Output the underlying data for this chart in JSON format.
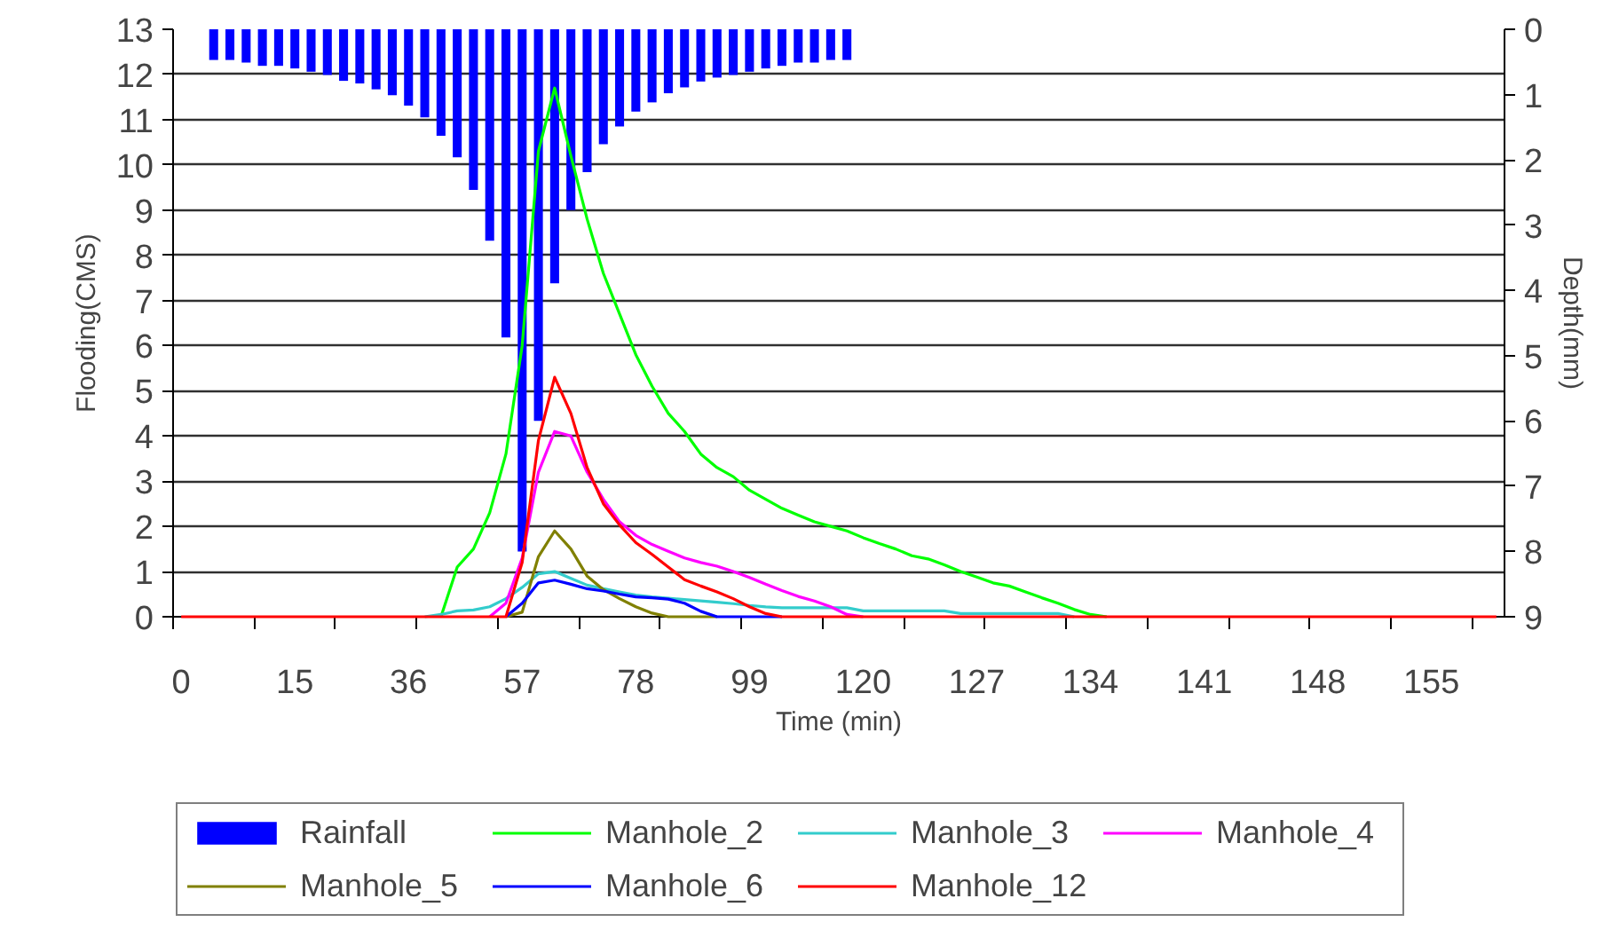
{
  "chart_data": {
    "type": "line",
    "xlabel": "Time (min)",
    "ylabel": "Flooding(CMS)",
    "y2label": "Depth(mm)",
    "categories": [
      "0",
      null,
      null,
      null,
      null,
      null,
      null,
      "15",
      null,
      null,
      null,
      null,
      null,
      null,
      "36",
      null,
      null,
      null,
      null,
      null,
      null,
      "57",
      null,
      null,
      null,
      null,
      null,
      null,
      "78",
      null,
      null,
      null,
      null,
      null,
      null,
      "99",
      null,
      null,
      null,
      null,
      null,
      null,
      "120",
      null,
      null,
      null,
      null,
      null,
      null,
      "127",
      null,
      null,
      null,
      null,
      null,
      null,
      "134",
      null,
      null,
      null,
      null,
      null,
      null,
      "141",
      null,
      null,
      null,
      null,
      null,
      null,
      "148",
      null,
      null,
      null,
      null,
      null,
      null,
      "155",
      null,
      null,
      null,
      null
    ],
    "ylim": [
      0,
      13
    ],
    "yticks": [
      0,
      1,
      2,
      3,
      4,
      5,
      6,
      7,
      8,
      9,
      10,
      11,
      12,
      13
    ],
    "y2lim": [
      9,
      0
    ],
    "y2ticks": [
      0,
      1,
      2,
      3,
      4,
      5,
      6,
      7,
      8,
      9
    ],
    "grid": "y",
    "legend": "bottom",
    "series": [
      {
        "name": "Rainfall",
        "type": "bar",
        "axis": "y2",
        "color": "#0000ff",
        "values": [
          null,
          null,
          0.47,
          0.47,
          0.51,
          0.56,
          0.56,
          0.6,
          0.65,
          0.7,
          0.79,
          0.83,
          0.92,
          1.01,
          1.17,
          1.35,
          1.63,
          1.96,
          2.46,
          3.24,
          4.72,
          8.0,
          6.0,
          3.89,
          2.77,
          2.19,
          1.76,
          1.49,
          1.26,
          1.12,
          0.98,
          0.89,
          0.8,
          0.74,
          0.7,
          0.65,
          0.6,
          0.56,
          0.51,
          0.51,
          0.47,
          0.47,
          null,
          null,
          null,
          null,
          null,
          null,
          null,
          null,
          null,
          null,
          null,
          null,
          null,
          null,
          null,
          null,
          null,
          null,
          null,
          null,
          null,
          null,
          null,
          null,
          null,
          null,
          null,
          null,
          null,
          null,
          null,
          null,
          null,
          null,
          null,
          null,
          null,
          null,
          null,
          null
        ]
      },
      {
        "name": "Manhole_2",
        "color": "#00ff00",
        "values": [
          null,
          null,
          null,
          null,
          null,
          null,
          null,
          null,
          null,
          null,
          null,
          null,
          null,
          null,
          null,
          null,
          0,
          1.1,
          1.5,
          2.3,
          3.6,
          6.0,
          10.3,
          11.7,
          10.2,
          8.8,
          7.6,
          6.7,
          5.8,
          5.1,
          4.5,
          4.1,
          3.6,
          3.3,
          3.1,
          2.8,
          2.6,
          2.4,
          2.25,
          2.1,
          2.0,
          1.9,
          1.75,
          1.62,
          1.5,
          1.35,
          1.28,
          1.15,
          1.0,
          0.88,
          0.75,
          0.68,
          0.55,
          0.42,
          0.3,
          0.16,
          0.05,
          0,
          null,
          null,
          null,
          null,
          null,
          null,
          null,
          null,
          null,
          null,
          null,
          null,
          null,
          null,
          null,
          null,
          null,
          null,
          null,
          null,
          null,
          null,
          null,
          null
        ]
      },
      {
        "name": "Manhole_3",
        "color": "#33cccc",
        "values": [
          null,
          null,
          null,
          null,
          null,
          null,
          null,
          null,
          null,
          null,
          null,
          null,
          null,
          null,
          null,
          0,
          0.05,
          0.13,
          0.15,
          0.22,
          0.4,
          0.65,
          0.95,
          1.0,
          0.85,
          0.7,
          0.62,
          0.55,
          0.48,
          0.44,
          0.41,
          0.38,
          0.35,
          0.32,
          0.29,
          0.25,
          0.22,
          0.2,
          0.2,
          0.2,
          0.2,
          0.2,
          0.13,
          0.13,
          0.13,
          0.13,
          0.13,
          0.13,
          0.07,
          0.07,
          0.07,
          0.07,
          0.07,
          0.07,
          0.07,
          0,
          null,
          null,
          null,
          null,
          null,
          null,
          null,
          null,
          null,
          null,
          null,
          null,
          null,
          null,
          null,
          null,
          null,
          null,
          null,
          null,
          null,
          null,
          null,
          null,
          null,
          null
        ]
      },
      {
        "name": "Manhole_4",
        "color": "#ff00ff",
        "values": [
          null,
          null,
          null,
          null,
          null,
          null,
          null,
          null,
          null,
          null,
          null,
          null,
          null,
          null,
          null,
          null,
          null,
          null,
          null,
          0,
          0.3,
          1.3,
          3.2,
          4.1,
          4.0,
          3.2,
          2.6,
          2.1,
          1.8,
          1.6,
          1.45,
          1.3,
          1.2,
          1.12,
          1.0,
          0.87,
          0.72,
          0.58,
          0.45,
          0.35,
          0.22,
          0.05,
          0,
          null,
          null,
          null,
          null,
          null,
          null,
          null,
          null,
          null,
          null,
          null,
          null,
          null,
          null,
          null,
          null,
          null,
          null,
          null,
          null,
          null,
          null,
          null,
          null,
          null,
          null,
          null,
          null,
          null,
          null,
          null,
          null,
          null,
          null,
          null,
          null,
          null,
          null,
          null
        ]
      },
      {
        "name": "Manhole_5",
        "color": "#808000",
        "values": [
          null,
          null,
          null,
          null,
          null,
          null,
          null,
          null,
          null,
          null,
          null,
          null,
          null,
          null,
          null,
          null,
          null,
          null,
          null,
          null,
          0,
          0.1,
          1.33,
          1.9,
          1.5,
          0.9,
          0.6,
          0.4,
          0.22,
          0.08,
          0,
          0,
          0,
          0,
          null,
          null,
          null,
          null,
          null,
          null,
          null,
          null,
          null,
          null,
          null,
          null,
          null,
          null,
          null,
          null,
          null,
          null,
          null,
          null,
          null,
          null,
          null,
          null,
          null,
          null,
          null,
          null,
          null,
          null,
          null,
          null,
          null,
          null,
          null,
          null,
          null,
          null,
          null,
          null,
          null,
          null,
          null,
          null,
          null,
          null,
          null,
          null
        ]
      },
      {
        "name": "Manhole_6",
        "color": "#0000ff",
        "values": [
          null,
          null,
          null,
          null,
          null,
          null,
          null,
          null,
          null,
          null,
          null,
          null,
          null,
          null,
          null,
          null,
          null,
          null,
          null,
          null,
          0,
          0.3,
          0.75,
          0.81,
          0.72,
          0.62,
          0.57,
          0.5,
          0.44,
          0.42,
          0.39,
          0.3,
          0.12,
          0,
          0,
          0,
          0,
          0,
          null,
          null,
          null,
          null,
          null,
          null,
          null,
          null,
          null,
          null,
          null,
          null,
          null,
          null,
          null,
          null,
          null,
          null,
          null,
          null,
          null,
          null,
          null,
          null,
          null,
          null,
          null,
          null,
          null,
          null,
          null,
          null,
          null,
          null,
          null,
          null,
          null,
          null,
          null,
          null,
          null,
          null,
          null,
          null
        ]
      },
      {
        "name": "Manhole_12",
        "color": "#ff0000",
        "values": [
          0,
          0,
          0,
          0,
          0,
          0,
          0,
          0,
          0,
          0,
          0,
          0,
          0,
          0,
          0,
          0,
          0,
          0,
          0,
          0,
          0,
          1.2,
          3.9,
          5.3,
          4.5,
          3.3,
          2.5,
          2.03,
          1.64,
          1.38,
          1.1,
          0.82,
          0.68,
          0.55,
          0.4,
          0.22,
          0.07,
          0,
          0,
          0,
          0,
          0,
          0,
          0,
          0,
          0,
          0,
          0,
          0,
          0,
          0,
          0,
          0,
          0,
          0,
          0,
          0,
          0,
          0,
          0,
          0,
          0,
          0,
          0,
          0,
          0,
          0,
          0,
          0,
          0,
          0,
          0,
          0,
          0,
          0,
          0,
          0,
          0,
          0,
          0,
          0,
          0
        ]
      }
    ]
  }
}
